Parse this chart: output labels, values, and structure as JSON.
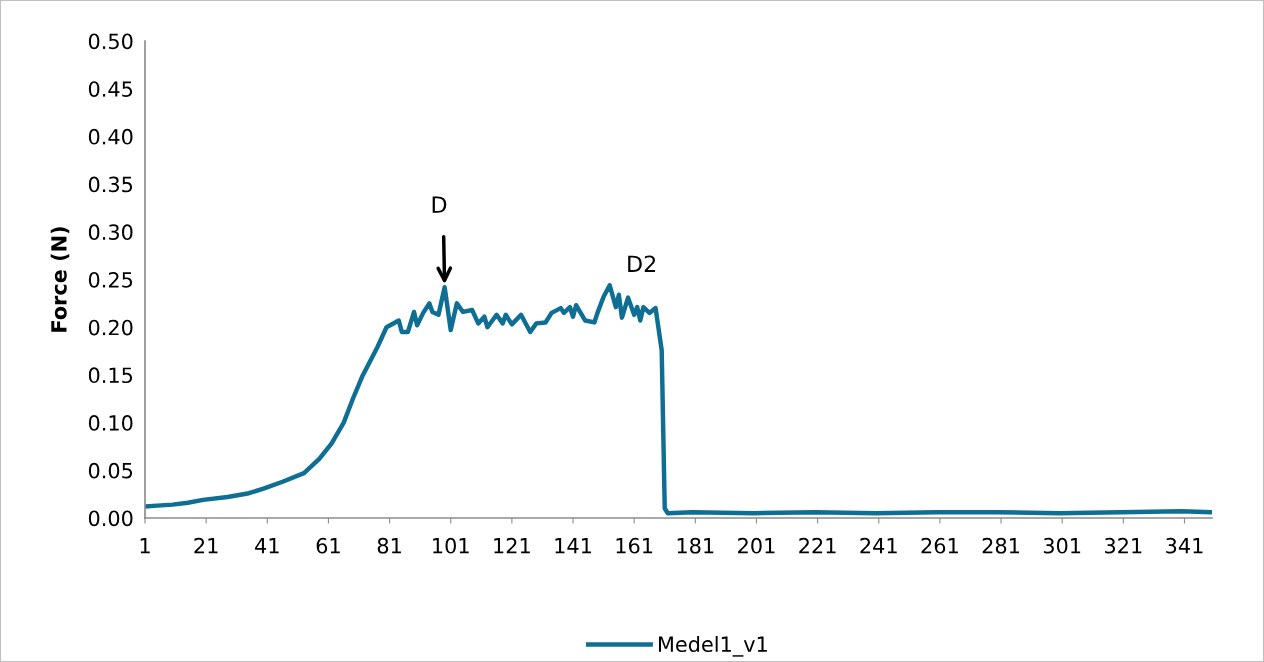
{
  "chart_data": {
    "type": "line",
    "ylabel": "Force (N)",
    "x": [
      1,
      5,
      10,
      15,
      20,
      28,
      35,
      40,
      46,
      53,
      58,
      62,
      66,
      69,
      72,
      77,
      80,
      84,
      85,
      87,
      89,
      90,
      92,
      94,
      95,
      97,
      99,
      101,
      103,
      105,
      108,
      110,
      112,
      113,
      116,
      118,
      119,
      121,
      124,
      127,
      129,
      132,
      134,
      137,
      138,
      140,
      141,
      142,
      145,
      148,
      149,
      151,
      153,
      155,
      156,
      157,
      159,
      161,
      162,
      163,
      164,
      166,
      168,
      170,
      171,
      172,
      180,
      200,
      220,
      240,
      260,
      280,
      300,
      320,
      340,
      350
    ],
    "series": [
      {
        "name": "Medel1_v1",
        "color": "#0e6e94",
        "values": [
          0.012,
          0.013,
          0.014,
          0.016,
          0.019,
          0.022,
          0.026,
          0.031,
          0.038,
          0.047,
          0.062,
          0.078,
          0.1,
          0.125,
          0.148,
          0.179,
          0.2,
          0.207,
          0.195,
          0.195,
          0.216,
          0.202,
          0.215,
          0.225,
          0.216,
          0.213,
          0.242,
          0.197,
          0.225,
          0.216,
          0.218,
          0.204,
          0.211,
          0.2,
          0.213,
          0.204,
          0.213,
          0.203,
          0.213,
          0.195,
          0.204,
          0.205,
          0.215,
          0.22,
          0.215,
          0.221,
          0.211,
          0.223,
          0.207,
          0.205,
          0.215,
          0.232,
          0.244,
          0.221,
          0.234,
          0.21,
          0.231,
          0.213,
          0.221,
          0.207,
          0.221,
          0.215,
          0.22,
          0.176,
          0.01,
          0.005,
          0.006,
          0.005,
          0.006,
          0.005,
          0.006,
          0.006,
          0.005,
          0.006,
          0.007,
          0.006
        ]
      }
    ],
    "xlim": [
      1,
      350
    ],
    "xticks": [
      1,
      21,
      41,
      61,
      81,
      101,
      121,
      141,
      161,
      181,
      201,
      221,
      241,
      261,
      281,
      301,
      321,
      341
    ],
    "ylim": [
      0,
      0.5
    ],
    "yticks": [
      {
        "value": 0,
        "label": "0.00"
      },
      {
        "value": 0.05,
        "label": "0.05"
      },
      {
        "value": 0.1,
        "label": "0.10"
      },
      {
        "value": 0.15,
        "label": "0.15"
      },
      {
        "value": 0.2,
        "label": "0.20"
      },
      {
        "value": 0.25,
        "label": "0.25"
      },
      {
        "value": 0.3,
        "label": "0.30"
      },
      {
        "value": 0.35,
        "label": "0.35"
      },
      {
        "value": 0.4,
        "label": "0.40"
      },
      {
        "value": 0.45,
        "label": "0.45"
      },
      {
        "value": 0.5,
        "label": "0.50"
      }
    ],
    "annotations": [
      {
        "text": "D",
        "x": 99,
        "y": 0.242
      },
      {
        "text": "D2",
        "x": 153,
        "y": 0.244
      }
    ],
    "grid": false,
    "legend": "bottom",
    "marker": "none",
    "line_style": "solid"
  }
}
